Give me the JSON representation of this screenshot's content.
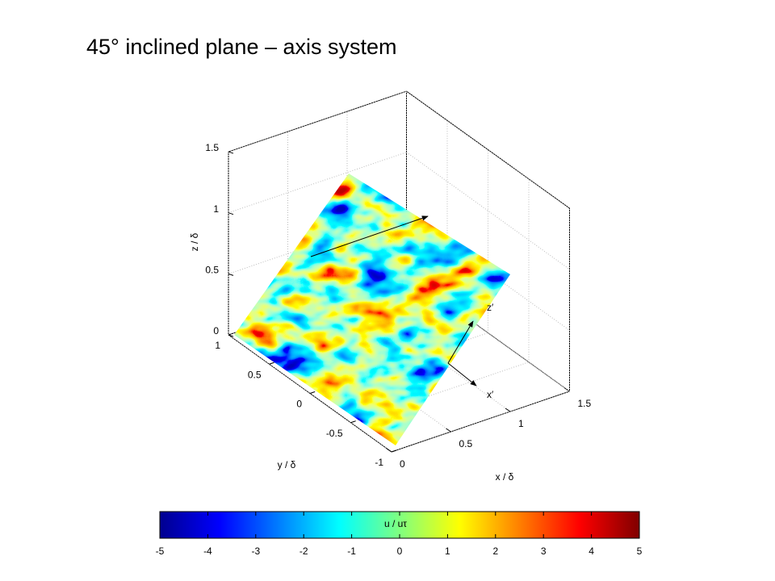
{
  "chart_data": {
    "type": "surface3d",
    "title": "45° inclined plane – axis system",
    "xlabel": "x / δ",
    "ylabel": "y / δ",
    "zlabel": "z / δ",
    "xlim": [
      0,
      1.5
    ],
    "xticks": [
      0,
      0.5,
      1,
      1.5
    ],
    "ylim": [
      -1,
      1
    ],
    "yticks": [
      -1,
      -0.5,
      0,
      0.5,
      1
    ],
    "zlim": [
      0,
      1.5
    ],
    "zticks": [
      0,
      0.5,
      1,
      1.5
    ],
    "grid": true,
    "annotations": [
      "z′",
      "x′"
    ],
    "colorbar": {
      "label": "u / uτ",
      "colormap": "jet",
      "lim": [
        -5,
        5
      ],
      "ticks": [
        -5,
        -4,
        -3,
        -2,
        -1,
        0,
        1,
        2,
        3,
        4,
        5
      ]
    }
  }
}
